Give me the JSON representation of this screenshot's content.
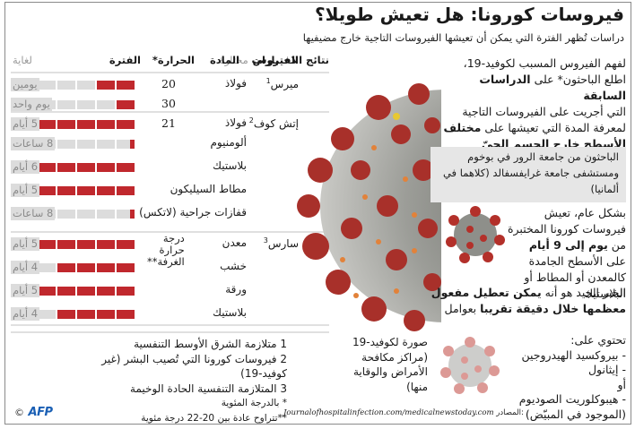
{
  "header": {
    "title": "فيروسات كورونا: هل تعيش طويلا؟",
    "subtitle": "دراسات تُظهر الفترة التي يمكن أن تعيشها الفيروسات التاجية خارج مضيفيها"
  },
  "table": {
    "headers": {
      "results": "نتائج الاختبارات",
      "selected": "مختارة",
      "virus": "الفيروس",
      "material": "المادة",
      "temperature": "الحرارة*",
      "duration": "الفترة",
      "until": "لغاية"
    },
    "room_temp_label": [
      "درجة",
      "حرارة",
      "الغرفة**"
    ]
  },
  "chart_data": {
    "type": "bar",
    "title": "فيروسات كورونا: هل تعيش طويلا؟",
    "subtitle": "دراسات تُظهر الفترة التي يمكن أن تعيشها الفيروسات التاجية خارج مضيفيها",
    "xlabel": "الفترة",
    "ylabel": "المادة",
    "unit": "days (each block = 1 day, max 6 blocks)",
    "groups": [
      {
        "virus": "ميرس",
        "note": "1",
        "rows": [
          {
            "material": "فولاذ",
            "temperature": "20",
            "value_days": 2,
            "label": "يومين"
          },
          {
            "material": "",
            "temperature": "30",
            "value_days": 1,
            "label": "يوم واحد"
          }
        ]
      },
      {
        "virus": "إتش كوف",
        "note": "2",
        "rows": [
          {
            "material": "فولاذ",
            "temperature": "21",
            "value_days": 5,
            "label": "5 أيام"
          },
          {
            "material": "ألومنيوم",
            "temperature": "",
            "value_days": 0.33,
            "label": "8 ساعات"
          },
          {
            "material": "بلاستيك",
            "temperature": "",
            "value_days": 6,
            "label": "6 أيام"
          },
          {
            "material": "مطاط السيليكون",
            "temperature": "",
            "value_days": 5,
            "label": "5 أيام"
          },
          {
            "material": "قفازات جراحية (لاتكس)",
            "temperature": "",
            "value_days": 0.33,
            "label": "8 ساعات"
          }
        ]
      },
      {
        "virus": "سارس",
        "note": "3",
        "rows": [
          {
            "material": "معدن",
            "temperature": "درجة حرارة الغرفة**",
            "value_days": 5,
            "label": "5 أيام"
          },
          {
            "material": "خشب",
            "temperature": "",
            "value_days": 4,
            "label": "4 أيام"
          },
          {
            "material": "ورقة",
            "temperature": "",
            "value_days": 5,
            "label": "5 أيام"
          },
          {
            "material": "بلاستيك",
            "temperature": "",
            "value_days": 4,
            "label": "4 أيام"
          }
        ]
      }
    ],
    "max_blocks": 6,
    "colors": {
      "filled": "#c0282d",
      "empty": "#dcdcdc"
    }
  },
  "right": {
    "intro_1": "لفهم الفيروس المسبب لكوفيد-19،",
    "intro_2a": "اطلع الباحثون* على ",
    "intro_2b": "الدراسات السابقة",
    "intro_3": "التي أجريت على الفيروسات التاجية",
    "intro_4a": "لمعرفة المدة التي تعيشها على ",
    "intro_4b": "مختلف",
    "intro_5": "الأسطح خارج الجسم الحيّ للمضيف",
    "box": "الباحثون من جامعة الرور في بوخوم ومستشفى جامعة غرايفسفالد (كلاهما في ألمانيا)",
    "general_1": "بشكل عام، تعيش فيروسات كورونا المختبرة من ",
    "general_b1": "يوم إلى 9 أيام",
    "general_2": " على الأسطح الجامدة كالمعدن أو المطاط أو البلاستيك",
    "good_1": "الخبر الجيد هو أنه ",
    "good_b1": "يمكن تعطيل مفعول معظمها خلال دقيقة تقريبا",
    "good_2": " بعوامل",
    "contains": "تحتوي على:",
    "agents": [
      "- بيروكسيد الهيدروجين",
      "- إيثانول",
      "أو",
      "- هيبوكلوريت الصوديوم",
      "(الموجود في المبيّض)"
    ]
  },
  "caption": {
    "lines": [
      "صورة لكوفيد-19",
      "(مراكز مكافحة",
      "الأمراض والوقاية",
      "منها)"
    ]
  },
  "footnotes": {
    "items": [
      "1 متلازمة الشرق الأوسط التنفسية",
      "2 فيروسات كورونا التي تُصيب البشر (غير كوفيد-19)",
      "3 المتلازمة التنفسية الحادة الوخيمة",
      "* بالدرجة المئوية",
      "**تتراوح عادة بين 20-22 درجة مئوية"
    ]
  },
  "source": {
    "label": "المصادر:",
    "text": "Journalofhospitalinfection.com/medicalnewstoday.com"
  },
  "credit": {
    "copyright": "©",
    "logo": "AFP"
  }
}
